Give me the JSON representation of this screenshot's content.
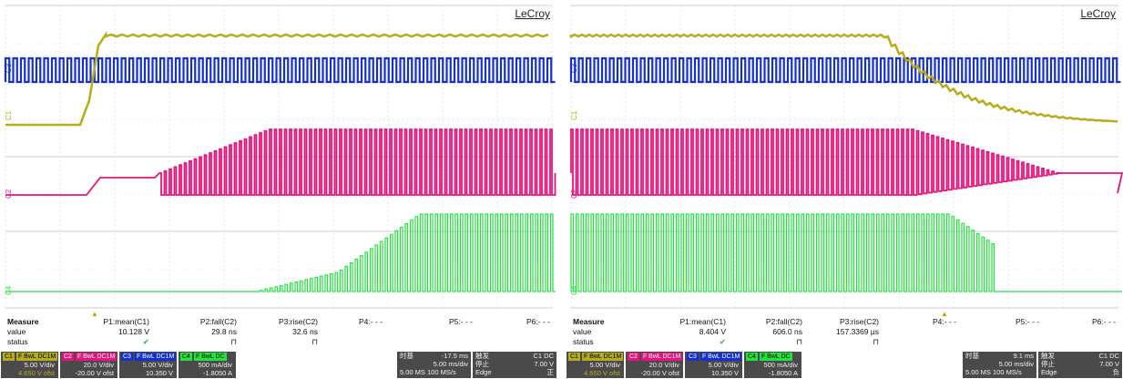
{
  "brand": "LeCroy",
  "colors": {
    "c1": "#b7ac1a",
    "c2": "#e6157e",
    "c3": "#1430d2",
    "c4": "#21e43c",
    "box_bg": "#4a4a4a"
  },
  "channel_markers": {
    "c3": "C3",
    "c1": "C1",
    "c2": "C2",
    "c4": "C4"
  },
  "measure_labels": {
    "title": "Measure",
    "value": "value",
    "status": "status"
  },
  "left": {
    "params": [
      {
        "name": "P1:mean(C1)",
        "value": "10.128 V",
        "status": "✔"
      },
      {
        "name": "P2:fall(C2)",
        "value": "29.8 ns",
        "status": "⊓"
      },
      {
        "name": "P3:rise(C2)",
        "value": "32.6 ns",
        "status": "⊓"
      },
      {
        "name": "P4:- - -",
        "value": "",
        "status": ""
      },
      {
        "name": "P5:- - -",
        "value": "",
        "status": ""
      },
      {
        "name": "P6:- - -",
        "value": "",
        "status": ""
      }
    ],
    "channels": [
      {
        "tag": "C1",
        "flags": "F BwL DC1M",
        "vdiv": "5.00 V/div",
        "ofst": "4.650 V ofst"
      },
      {
        "tag": "C2",
        "flags": "F BwL DC1M",
        "vdiv": "20.0 V/div",
        "ofst": "-20.00 V ofst"
      },
      {
        "tag": "C3",
        "flags": "F BwL DC1M",
        "vdiv": "5.00 V/div",
        "ofst": "10.350 V"
      },
      {
        "tag": "C4",
        "flags": "F BwL DC",
        "vdiv": "500 mA/div",
        "ofst": "-1.8050 A"
      }
    ],
    "timebase": {
      "label": "时基",
      "delay": "-17.5 ms",
      "tdiv": "5.00 ms/div",
      "rate": "5.00 MS   100 MS/s"
    },
    "trigger": {
      "label": "触发",
      "src": "C1 DC",
      "state": "停止",
      "level": "7.00 V",
      "mode": "Edge",
      "slope": "正"
    }
  },
  "right": {
    "params": [
      {
        "name": "P1:mean(C1)",
        "value": "8.404 V",
        "status": "✔"
      },
      {
        "name": "P2:fall(C2)",
        "value": "606.0 ns",
        "status": "⊓"
      },
      {
        "name": "P3:rise(C2)",
        "value": "157.3369 µs",
        "status": "⊓"
      },
      {
        "name": "P4:- - -",
        "value": "",
        "status": ""
      },
      {
        "name": "P5:- - -",
        "value": "",
        "status": ""
      },
      {
        "name": "P6:- - -",
        "value": "",
        "status": ""
      }
    ],
    "channels": [
      {
        "tag": "C1",
        "flags": "F BwL DC1M",
        "vdiv": "5.00 V/div",
        "ofst": "4.650 V ofst"
      },
      {
        "tag": "C2",
        "flags": "F BwL DC1M",
        "vdiv": "20.0 V/div",
        "ofst": "-20.00 V ofst"
      },
      {
        "tag": "C3",
        "flags": "F BwL DC1M",
        "vdiv": "5.00 V/div",
        "ofst": "10.350 V"
      },
      {
        "tag": "C4",
        "flags": "F BwL DC",
        "vdiv": "500 mA/div",
        "ofst": "-1.8050 A"
      }
    ],
    "timebase": {
      "label": "时基",
      "delay": "9.1 ms",
      "tdiv": "5.00 ms/div",
      "rate": "5.00 MS   100 MS/s"
    },
    "trigger": {
      "label": "触发",
      "src": "C1 DC",
      "state": "停止",
      "level": "7.00 V",
      "mode": "Edge",
      "slope": "负"
    }
  }
}
